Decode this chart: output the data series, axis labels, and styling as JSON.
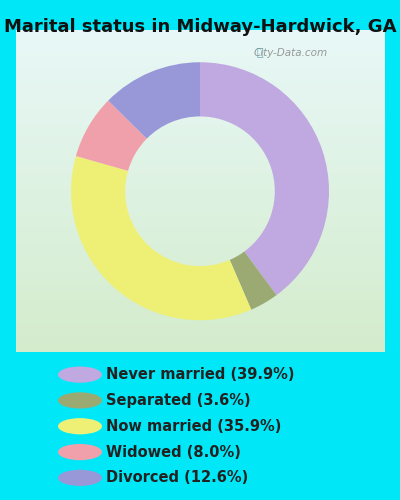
{
  "title": "Marital status in Midway-Hardwick, GA",
  "values": [
    39.9,
    3.6,
    35.9,
    8.0,
    12.6
  ],
  "colors": [
    "#c0a8e0",
    "#9aaa72",
    "#eef076",
    "#f0a0aa",
    "#9898d8"
  ],
  "legend_labels": [
    "Never married (39.9%)",
    "Separated (3.6%)",
    "Now married (35.9%)",
    "Widowed (8.0%)",
    "Divorced (12.6%)"
  ],
  "bg_outer_color": "#00e8f8",
  "bg_chart_top": "#e8f8f8",
  "bg_chart_bottom": "#d4eccc",
  "title_fontsize": 13,
  "legend_fontsize": 10.5,
  "donut_width": 0.42,
  "start_angle": 90
}
